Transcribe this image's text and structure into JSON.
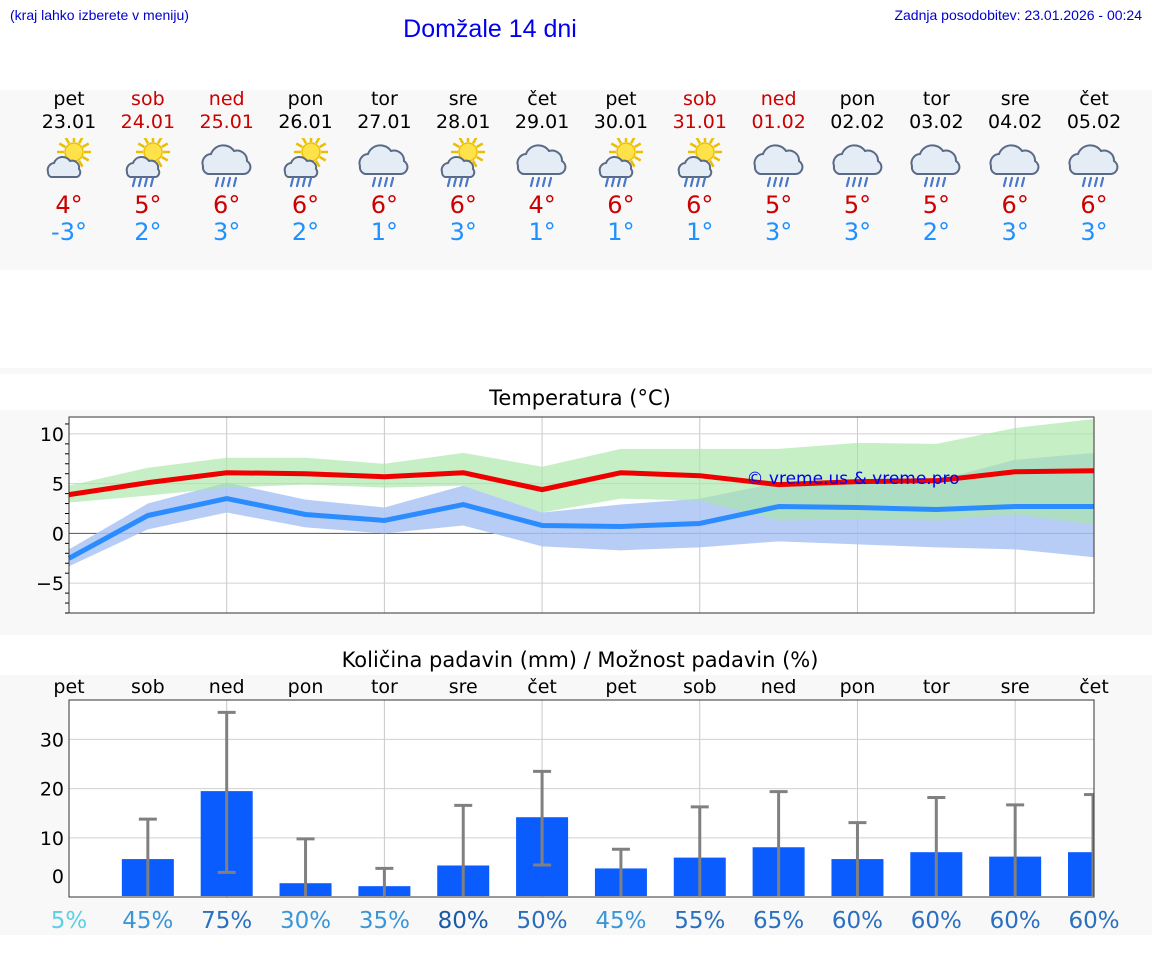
{
  "header": {
    "hint": "(kraj lahko izberete v meniju)",
    "title": "Domžale 14 dni",
    "updated": "Zadnja posodobitev: 23.01.2026 - 00:24"
  },
  "days": [
    {
      "name": "pet",
      "date": "23.01",
      "weekend": false,
      "icon": "sun-cloud-icon",
      "tmax": "4°",
      "tmin": "-3°"
    },
    {
      "name": "sob",
      "date": "24.01",
      "weekend": true,
      "icon": "sun-cloud-rain-icon",
      "tmax": "5°",
      "tmin": "2°"
    },
    {
      "name": "ned",
      "date": "25.01",
      "weekend": true,
      "icon": "cloud-rain-icon",
      "tmax": "6°",
      "tmin": "3°"
    },
    {
      "name": "pon",
      "date": "26.01",
      "weekend": false,
      "icon": "sun-cloud-rain-icon",
      "tmax": "6°",
      "tmin": "2°"
    },
    {
      "name": "tor",
      "date": "27.01",
      "weekend": false,
      "icon": "cloud-rain-icon",
      "tmax": "6°",
      "tmin": "1°"
    },
    {
      "name": "sre",
      "date": "28.01",
      "weekend": false,
      "icon": "sun-cloud-rain-icon",
      "tmax": "6°",
      "tmin": "3°"
    },
    {
      "name": "čet",
      "date": "29.01",
      "weekend": false,
      "icon": "cloud-rain-icon",
      "tmax": "4°",
      "tmin": "1°"
    },
    {
      "name": "pet",
      "date": "30.01",
      "weekend": false,
      "icon": "sun-cloud-rain-icon",
      "tmax": "6°",
      "tmin": "1°"
    },
    {
      "name": "sob",
      "date": "31.01",
      "weekend": true,
      "icon": "sun-cloud-rain-icon",
      "tmax": "6°",
      "tmin": "1°"
    },
    {
      "name": "ned",
      "date": "01.02",
      "weekend": true,
      "icon": "cloud-rain-icon",
      "tmax": "5°",
      "tmin": "3°"
    },
    {
      "name": "pon",
      "date": "02.02",
      "weekend": false,
      "icon": "cloud-rain-icon",
      "tmax": "5°",
      "tmin": "3°"
    },
    {
      "name": "tor",
      "date": "03.02",
      "weekend": false,
      "icon": "cloud-rain-icon",
      "tmax": "5°",
      "tmin": "2°"
    },
    {
      "name": "sre",
      "date": "04.02",
      "weekend": false,
      "icon": "cloud-rain-icon",
      "tmax": "6°",
      "tmin": "3°"
    },
    {
      "name": "čet",
      "date": "05.02",
      "weekend": false,
      "icon": "cloud-rain-icon",
      "tmax": "6°",
      "tmin": "3°"
    }
  ],
  "colors": {
    "max_line": "#ee0000",
    "max_band": "#a8e6a8",
    "min_line": "#2b8cff",
    "min_band": "#aac4f4",
    "overlap_band": "#7abfa8",
    "precip_bar": "#0a5cff",
    "error_bar": "#808080",
    "tmax_text": "#cc0000",
    "tmin_text": "#1e90ff"
  },
  "chart_data": [
    {
      "type": "line",
      "title": "Temperatura (°C)",
      "watermark": "© vreme.us & vreme.pro",
      "x": [
        0,
        1,
        2,
        3,
        4,
        5,
        6,
        7,
        8,
        9,
        10,
        11,
        12,
        13
      ],
      "ylim": [
        -8,
        11.7
      ],
      "yticks": [
        -5,
        0,
        5,
        10
      ],
      "series": [
        {
          "name": "max",
          "values": [
            3.9,
            5.1,
            6.1,
            6.0,
            5.7,
            6.1,
            4.4,
            6.1,
            5.8,
            4.9,
            5.2,
            5.3,
            6.2,
            6.3
          ],
          "band_low": [
            3.1,
            3.8,
            4.6,
            4.9,
            4.6,
            4.8,
            2.1,
            3.5,
            3.3,
            1.3,
            1.4,
            1.3,
            1.9,
            0.9
          ],
          "band_high": [
            4.8,
            6.6,
            7.6,
            7.6,
            7.0,
            8.1,
            6.7,
            8.5,
            8.5,
            8.5,
            9.1,
            9.0,
            10.6,
            11.5
          ]
        },
        {
          "name": "min",
          "values": [
            -2.5,
            1.8,
            3.5,
            1.9,
            1.3,
            2.9,
            0.8,
            0.7,
            1.0,
            2.7,
            2.6,
            2.4,
            2.7,
            2.7
          ],
          "band_low": [
            -3.3,
            0.4,
            2.1,
            0.6,
            0.0,
            0.8,
            -1.3,
            -1.7,
            -1.4,
            -0.8,
            -1.1,
            -1.4,
            -1.6,
            -2.4
          ],
          "band_high": [
            -1.6,
            3.0,
            5.1,
            3.4,
            2.6,
            4.8,
            2.1,
            2.9,
            3.5,
            5.1,
            5.1,
            5.3,
            7.4,
            8.1
          ]
        }
      ]
    },
    {
      "type": "bar",
      "title": "Količina padavin (mm) / Možnost padavin (%)",
      "categories": [
        "pet",
        "sob",
        "ned",
        "pon",
        "tor",
        "sre",
        "čet",
        "pet",
        "sob",
        "ned",
        "pon",
        "tor",
        "sre",
        "čet"
      ],
      "values": [
        0,
        5.7,
        19.5,
        0.8,
        0.2,
        4.4,
        14.2,
        3.8,
        6.0,
        8.1,
        5.7,
        7.1,
        6.2,
        7.1
      ],
      "error_low": [
        0,
        0,
        3,
        0,
        0,
        0,
        4.5,
        0,
        0,
        0,
        0,
        0,
        0,
        0
      ],
      "error_high": [
        0,
        13.8,
        35.5,
        9.8,
        3.8,
        16.6,
        23.5,
        7.7,
        16.3,
        19.4,
        13.1,
        18.2,
        16.7,
        18.8
      ],
      "ylim": [
        -2,
        38
      ],
      "yticks": [
        0,
        10,
        20,
        30
      ],
      "probabilities": [
        "5%",
        "45%",
        "75%",
        "30%",
        "35%",
        "80%",
        "50%",
        "45%",
        "55%",
        "65%",
        "60%",
        "60%",
        "60%",
        "60%"
      ],
      "probability_colors": [
        "#5bd0e8",
        "#3a96d8",
        "#2a6fc0",
        "#3a96d8",
        "#3a96d8",
        "#1a5aa8",
        "#2a6fc0",
        "#3a96d8",
        "#2a6fc0",
        "#2a6fc0",
        "#2a6fc0",
        "#2a6fc0",
        "#2a6fc0",
        "#2a6fc0"
      ]
    }
  ]
}
